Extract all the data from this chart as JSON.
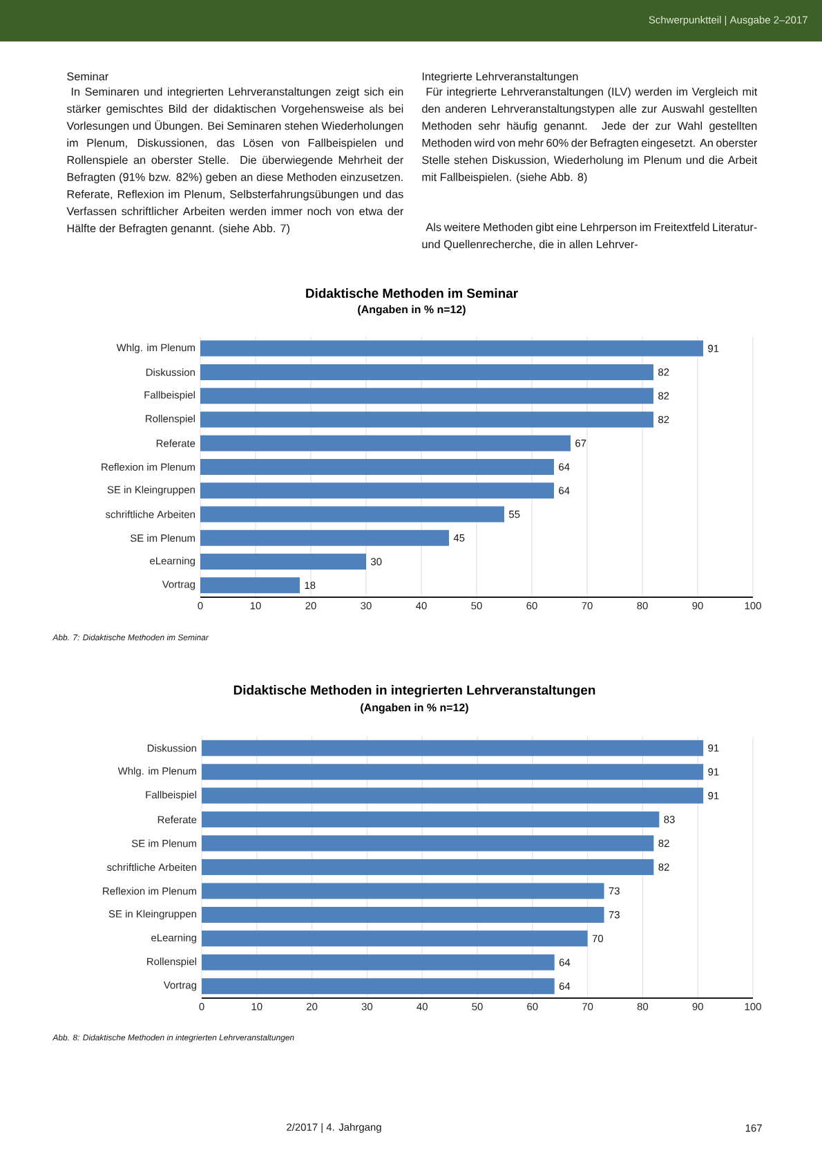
{
  "chart_data": [
    {
      "type": "bar",
      "orientation": "horizontal",
      "title": "Didaktische Methoden im Seminar",
      "subtitle": "(Angaben in % n=12)",
      "categories": [
        "Whlg. im Plenum",
        "Diskussion",
        "Fallbeispiel",
        "Rollenspiel",
        "Referate",
        "Reflexion im Plenum",
        "SE in Kleingruppen",
        "schriftliche Arbeiten",
        "SE im Plenum",
        "eLearning",
        "Vortrag"
      ],
      "values": [
        91,
        82,
        82,
        82,
        67,
        64,
        64,
        55,
        45,
        30,
        18
      ],
      "color": "#4f81bd",
      "xlim": [
        0,
        100
      ],
      "xticks": [
        0,
        10,
        20,
        30,
        40,
        50,
        60,
        70,
        80,
        90,
        100
      ],
      "grid": "x",
      "data_labels": true,
      "annotations": [
        "Schwerpunktteil | Ausgabe 2–2017",
        "Seminar",
        "In Seminaren und integrierten Lehrveranstaltungen zeigt sich ein stärker gemischtes Bild der didaktischen Vorgehensweise als bei Vorlesungen und Übungen. Bei Seminaren stehen Wiederholungen im Plenum, Diskussionen, das Lösen von Fallbeispielen und Rollenspiele an oberster Stelle. Die überwiegende Mehrheit der Befragten (91% bzw. 82%) geben an diese Methoden einzusetzen. Referate, Reflexion im Plenum, Selbsterfahrungsübungen und das Verfassen schriftlicher Arbeiten werden immer noch von etwa der Hälfte der Befragten genannt. (siehe Abb. 7)",
        "Integrierte Lehrveranstaltungen",
        "Für integrierte Lehrveranstaltungen (ILV) werden im Vergleich mit den anderen Lehrveranstaltungstypen alle zur Auswahl gestellten Methoden sehr häufig genannt. Jede der zur Wahl gestellten Methoden wird von mehr 60% der Befragten eingesetzt. An oberster Stelle stehen Diskussion, Wiederholung im Plenum und die Arbeit mit Fallbeispielen. (siehe Abb. 8)",
        "Als weitere Methoden gibt eine Lehrperson im Freitextfeld Literatur- und Quellenrecherche, die in allen Lehrver-",
        "Abb. 7: Didaktische Methoden im Seminar"
      ]
    },
    {
      "type": "bar",
      "orientation": "horizontal",
      "title": "Didaktische Methoden in integrierten Lehrveranstaltungen",
      "subtitle": "(Angaben in % n=12)",
      "categories": [
        "Diskussion",
        "Whlg. im Plenum",
        "Fallbeispiel",
        "Referate",
        "SE im Plenum",
        "schriftliche Arbeiten",
        "Reflexion im Plenum",
        "SE in Kleingruppen",
        "eLearning",
        "Rollenspiel",
        "Vortrag"
      ],
      "values": [
        91,
        91,
        91,
        83,
        82,
        82,
        73,
        73,
        70,
        64,
        64
      ],
      "color": "#4f81bd",
      "xlim": [
        0,
        100
      ],
      "xticks": [
        0,
        10,
        20,
        30,
        40,
        50,
        60,
        70,
        80,
        90,
        100
      ],
      "grid": "x",
      "data_labels": true,
      "annotations": [
        "Abb. 8: Didaktische Methoden in integrierten Lehrveranstaltungen",
        "2/2017 | 4. Jahrgang",
        "167"
      ]
    }
  ]
}
